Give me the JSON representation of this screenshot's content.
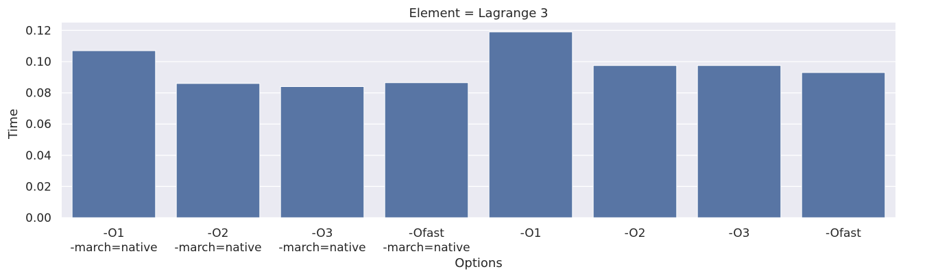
{
  "chart_data": {
    "type": "bar",
    "title": "Element = Lagrange 3",
    "xlabel": "Options",
    "ylabel": "Time",
    "ylim": [
      0,
      0.125
    ],
    "yticks": [
      0.0,
      0.02,
      0.04,
      0.06,
      0.08,
      0.1,
      0.12
    ],
    "ytick_labels": [
      "0.00",
      "0.02",
      "0.04",
      "0.06",
      "0.08",
      "0.10",
      "0.12"
    ],
    "grid": true,
    "legend": "none",
    "categories": [
      [
        "-O1",
        "-march=native"
      ],
      [
        "-O2",
        "-march=native"
      ],
      [
        "-O3",
        "-march=native"
      ],
      [
        "-Ofast",
        "-march=native"
      ],
      [
        "-O1"
      ],
      [
        "-O2"
      ],
      [
        "-O3"
      ],
      [
        "-Ofast"
      ]
    ],
    "values": [
      0.107,
      0.086,
      0.084,
      0.0865,
      0.119,
      0.0975,
      0.0975,
      0.093
    ],
    "colors": {
      "bar": "#5875a4",
      "plot_background": "#eaeaf2",
      "grid": "#ffffff",
      "text": "#262626"
    }
  }
}
